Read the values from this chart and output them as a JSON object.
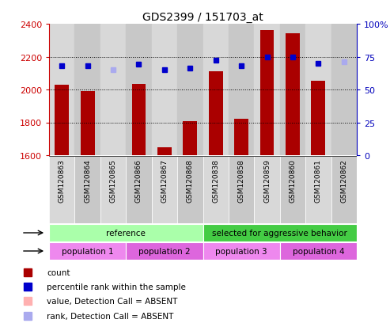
{
  "title": "GDS2399 / 151703_at",
  "samples": [
    "GSM120863",
    "GSM120864",
    "GSM120865",
    "GSM120866",
    "GSM120867",
    "GSM120868",
    "GSM120838",
    "GSM120858",
    "GSM120859",
    "GSM120860",
    "GSM120861",
    "GSM120862"
  ],
  "bar_values": [
    2030,
    1990,
    1600,
    2035,
    1650,
    1805,
    2110,
    1820,
    2360,
    2340,
    2055,
    1600
  ],
  "bar_absent": [
    false,
    false,
    true,
    false,
    false,
    false,
    false,
    false,
    false,
    false,
    false,
    true
  ],
  "dot_values": [
    68,
    68,
    65,
    69,
    65,
    66,
    72,
    68,
    75,
    75,
    70,
    71
  ],
  "dot_absent": [
    false,
    false,
    true,
    false,
    false,
    false,
    false,
    false,
    false,
    false,
    false,
    true
  ],
  "ylim_left": [
    1600,
    2400
  ],
  "ylim_right": [
    0,
    100
  ],
  "yticks_left": [
    1600,
    1800,
    2000,
    2200,
    2400
  ],
  "yticks_right": [
    0,
    25,
    50,
    75,
    100
  ],
  "bar_color_normal": "#aa0000",
  "bar_color_absent": "#ffb0b0",
  "dot_color_normal": "#0000cc",
  "dot_color_absent": "#aaaaee",
  "bg_color": "#ffffff",
  "strain_groups": [
    {
      "label": "reference",
      "start": 0,
      "end": 6,
      "color": "#aaffaa"
    },
    {
      "label": "selected for aggressive behavior",
      "start": 6,
      "end": 12,
      "color": "#44cc44"
    }
  ],
  "other_groups": [
    {
      "label": "population 1",
      "start": 0,
      "end": 3,
      "color": "#ee88ee"
    },
    {
      "label": "population 2",
      "start": 3,
      "end": 6,
      "color": "#dd66dd"
    },
    {
      "label": "population 3",
      "start": 6,
      "end": 9,
      "color": "#ee88ee"
    },
    {
      "label": "population 4",
      "start": 9,
      "end": 12,
      "color": "#dd66dd"
    }
  ],
  "legend_items": [
    {
      "label": "count",
      "color": "#aa0000"
    },
    {
      "label": "percentile rank within the sample",
      "color": "#0000cc"
    },
    {
      "label": "value, Detection Call = ABSENT",
      "color": "#ffb0b0"
    },
    {
      "label": "rank, Detection Call = ABSENT",
      "color": "#aaaaee"
    }
  ],
  "col_bg_even": "#d8d8d8",
  "col_bg_odd": "#c8c8c8"
}
